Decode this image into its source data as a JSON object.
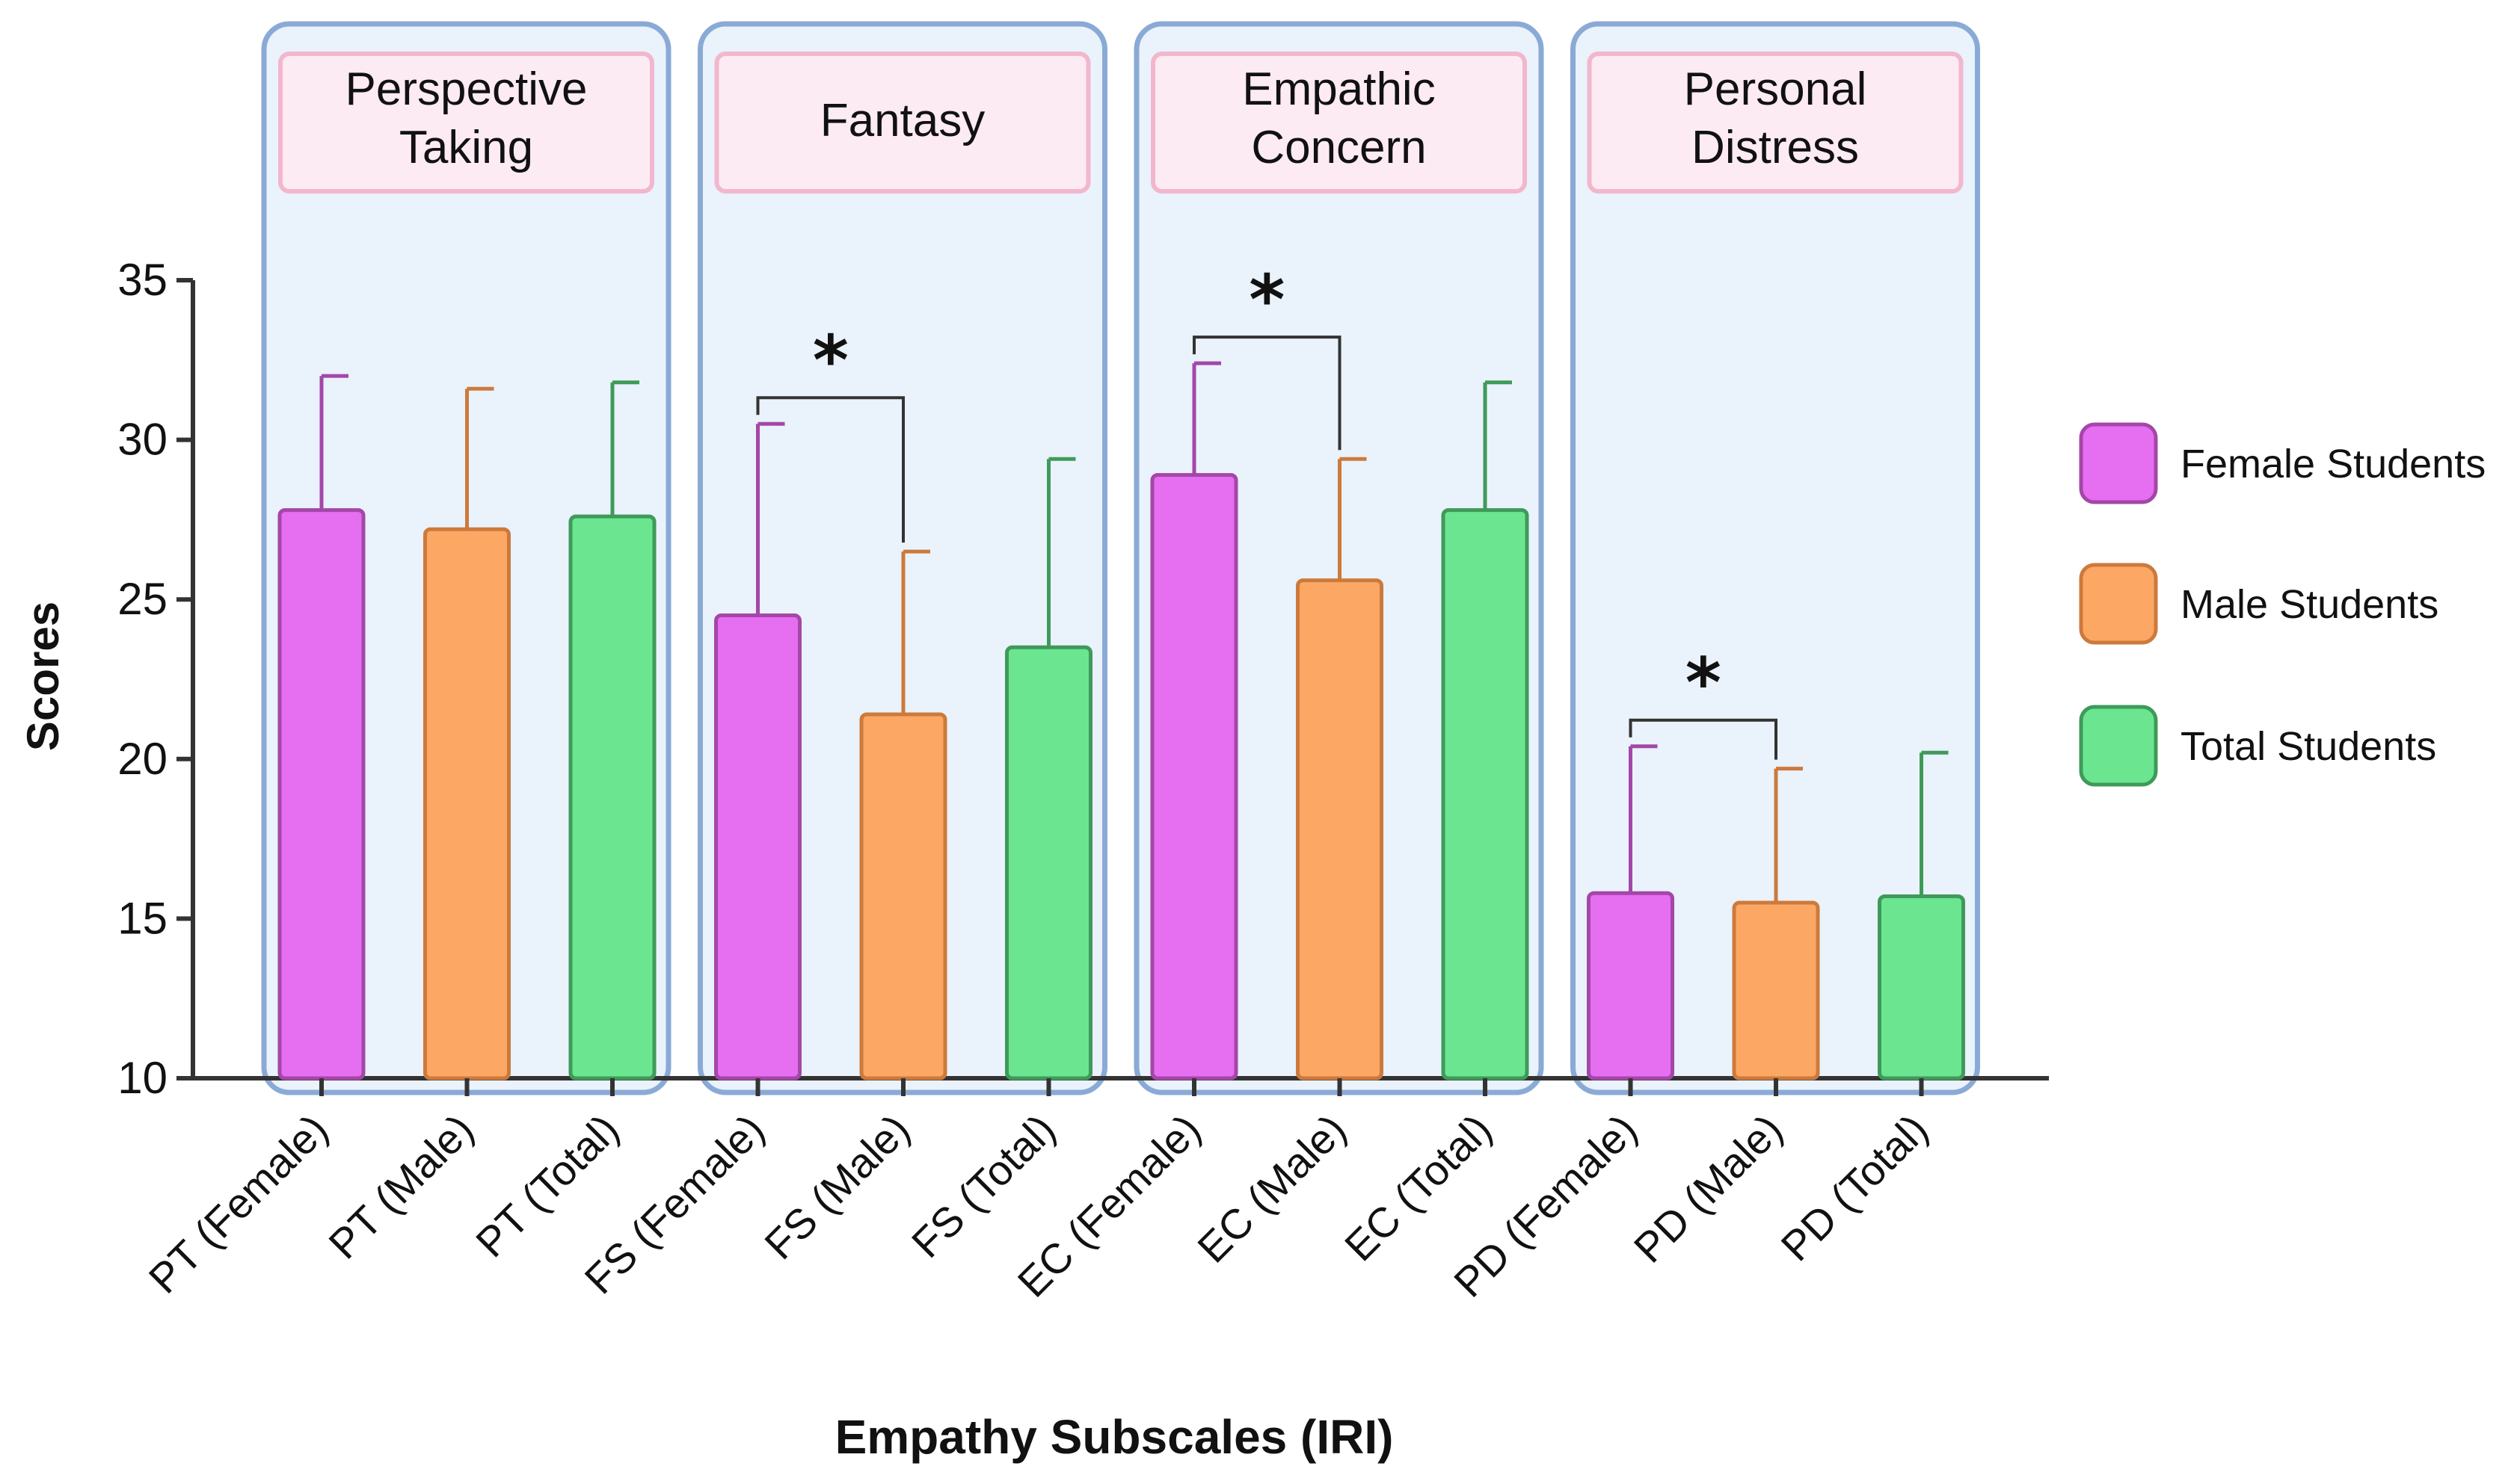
{
  "chart_data": {
    "type": "bar",
    "title": "",
    "xlabel": "Empathy Subscales (IRI)",
    "ylabel": "Scores",
    "ylim": [
      10,
      35
    ],
    "yticks": [
      10,
      15,
      20,
      25,
      30,
      35
    ],
    "grid": false,
    "legend_position": "right",
    "panels": [
      {
        "label_lines": [
          "Perspective",
          "Taking"
        ]
      },
      {
        "label_lines": [
          "Fantasy"
        ]
      },
      {
        "label_lines": [
          "Empathic",
          "Concern"
        ]
      },
      {
        "label_lines": [
          "Personal",
          "Distress"
        ]
      }
    ],
    "categories": [
      "PT (Female)",
      "PT (Male)",
      "PT (Total)",
      "FS (Female)",
      "FS (Male)",
      "FS (Total)",
      "EC (Female)",
      "EC (Male)",
      "EC (Total)",
      "PD (Female)",
      "PD (Male)",
      "PD (Total)"
    ],
    "values": [
      27.8,
      27.2,
      27.6,
      24.5,
      21.4,
      23.5,
      28.9,
      25.6,
      27.8,
      15.8,
      15.5,
      15.7
    ],
    "errors": [
      4.2,
      4.4,
      4.2,
      6.0,
      5.1,
      5.9,
      3.5,
      3.8,
      4.0,
      4.6,
      4.2,
      4.5
    ],
    "group_of_bar": [
      "Female Students",
      "Male Students",
      "Total Students",
      "Female Students",
      "Male Students",
      "Total Students",
      "Female Students",
      "Male Students",
      "Total Students",
      "Female Students",
      "Male Students",
      "Total Students"
    ],
    "significance": [
      {
        "from": 3,
        "to": 4,
        "label": "*"
      },
      {
        "from": 6,
        "to": 7,
        "label": "*"
      },
      {
        "from": 9,
        "to": 10,
        "label": "*"
      }
    ],
    "legend": [
      {
        "name": "Female Students",
        "color": "#e66ef0",
        "edge": "#a347a8"
      },
      {
        "name": "Male Students",
        "color": "#fda765",
        "edge": "#cc7a3c"
      },
      {
        "name": "Total Students",
        "color": "#6be590",
        "edge": "#3f9a5a"
      }
    ],
    "colors": {
      "panel_fill": "#eaf2fb",
      "panel_stroke": "#8aaad6",
      "label_box_fill": "#fdebf3",
      "label_box_stroke": "#f2b7cd",
      "axis": "#333333"
    }
  }
}
